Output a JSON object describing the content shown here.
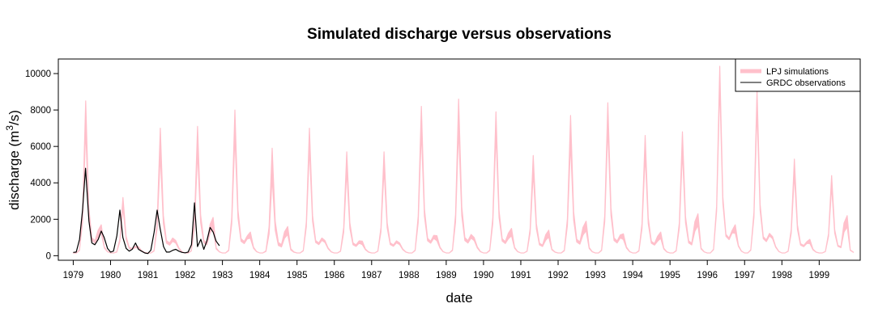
{
  "chart_data": {
    "type": "line",
    "title": "Simulated discharge versus observations",
    "xlabel": "date",
    "ylabel": "discharge (m³/s)",
    "ylabel_parts": {
      "prefix": "discharge (m",
      "sup": "3",
      "suffix": "/s)"
    },
    "xlim": [
      1978.6,
      2000.1
    ],
    "ylim": [
      -250,
      10800
    ],
    "x_ticks": [
      1979,
      1980,
      1981,
      1982,
      1983,
      1984,
      1985,
      1986,
      1987,
      1988,
      1989,
      1990,
      1991,
      1992,
      1993,
      1994,
      1995,
      1996,
      1997,
      1998,
      1999
    ],
    "x_tick_labels": [
      "1979",
      "1980",
      "1981",
      "1982",
      "1983",
      "1984",
      "1985",
      "1986",
      "1987",
      "1988",
      "1989",
      "1990",
      "1991",
      "1992",
      "1993",
      "1994",
      "1995",
      "1996",
      "1997",
      "1998",
      "1999"
    ],
    "y_ticks": [
      0,
      2000,
      4000,
      6000,
      8000,
      10000
    ],
    "y_tick_labels": [
      "0",
      "2000",
      "4000",
      "6000",
      "8000",
      "10000"
    ],
    "grid": false,
    "legend": {
      "position": "top-right",
      "entries": [
        {
          "label": "LPJ simulations",
          "color": "#ffc0cb",
          "style": "thick-line"
        },
        {
          "label": "GRDC observations",
          "color": "#000000",
          "style": "line"
        }
      ]
    },
    "series": [
      {
        "name": "LPJ simulations",
        "color": "#ffc0cb",
        "kind": "band",
        "years": [
          1979,
          1980,
          1981,
          1982,
          1983,
          1984,
          1985,
          1986,
          1987,
          1988,
          1989,
          1990,
          1991,
          1992,
          1993,
          1994,
          1995,
          1996,
          1997,
          1998,
          1999
        ],
        "annual_peak_low": [
          7300,
          2800,
          5800,
          6000,
          6900,
          4500,
          6200,
          4900,
          5000,
          7200,
          7300,
          7000,
          4800,
          6500,
          7400,
          5800,
          6000,
          9800,
          8400,
          4700,
          4000
        ],
        "annual_peak_high": [
          8500,
          3200,
          7000,
          7100,
          8000,
          5900,
          7000,
          5700,
          5700,
          8200,
          8600,
          7900,
          5500,
          7700,
          8400,
          6600,
          6800,
          10400,
          9100,
          5300,
          4400
        ],
        "annual_baseflow": [
          150,
          150,
          150,
          150,
          150,
          150,
          150,
          150,
          150,
          150,
          150,
          150,
          150,
          150,
          150,
          150,
          150,
          150,
          150,
          150,
          150
        ],
        "annual_secondary_peak": [
          1700,
          500,
          400,
          2100,
          1300,
          1600,
          700,
          800,
          300,
          1100,
          400,
          1500,
          1400,
          1900,
          1200,
          1300,
          2300,
          1700,
          1000,
          900,
          2200
        ]
      },
      {
        "name": "GRDC observations",
        "color": "#000000",
        "kind": "line",
        "x": [
          1979.0,
          1979.08,
          1979.17,
          1979.25,
          1979.33,
          1979.42,
          1979.5,
          1979.58,
          1979.67,
          1979.75,
          1979.83,
          1979.92,
          1980.0,
          1980.08,
          1980.17,
          1980.25,
          1980.33,
          1980.42,
          1980.5,
          1980.58,
          1980.67,
          1980.75,
          1980.83,
          1980.92,
          1981.0,
          1981.08,
          1981.17,
          1981.25,
          1981.33,
          1981.42,
          1981.5,
          1981.58,
          1981.67,
          1981.75,
          1981.83,
          1981.92,
          1982.0,
          1982.08,
          1982.17,
          1982.25,
          1982.33,
          1982.42,
          1982.5,
          1982.58,
          1982.67,
          1982.75,
          1982.83,
          1982.92
        ],
        "y": [
          180,
          200,
          900,
          2500,
          4800,
          1900,
          700,
          600,
          900,
          1350,
          1000,
          400,
          200,
          250,
          1100,
          2500,
          1000,
          400,
          250,
          350,
          700,
          350,
          250,
          150,
          120,
          300,
          1300,
          2500,
          1500,
          500,
          200,
          200,
          300,
          350,
          250,
          180,
          160,
          200,
          600,
          2900,
          500,
          900,
          350,
          800,
          1550,
          1300,
          800,
          550
        ]
      }
    ]
  }
}
